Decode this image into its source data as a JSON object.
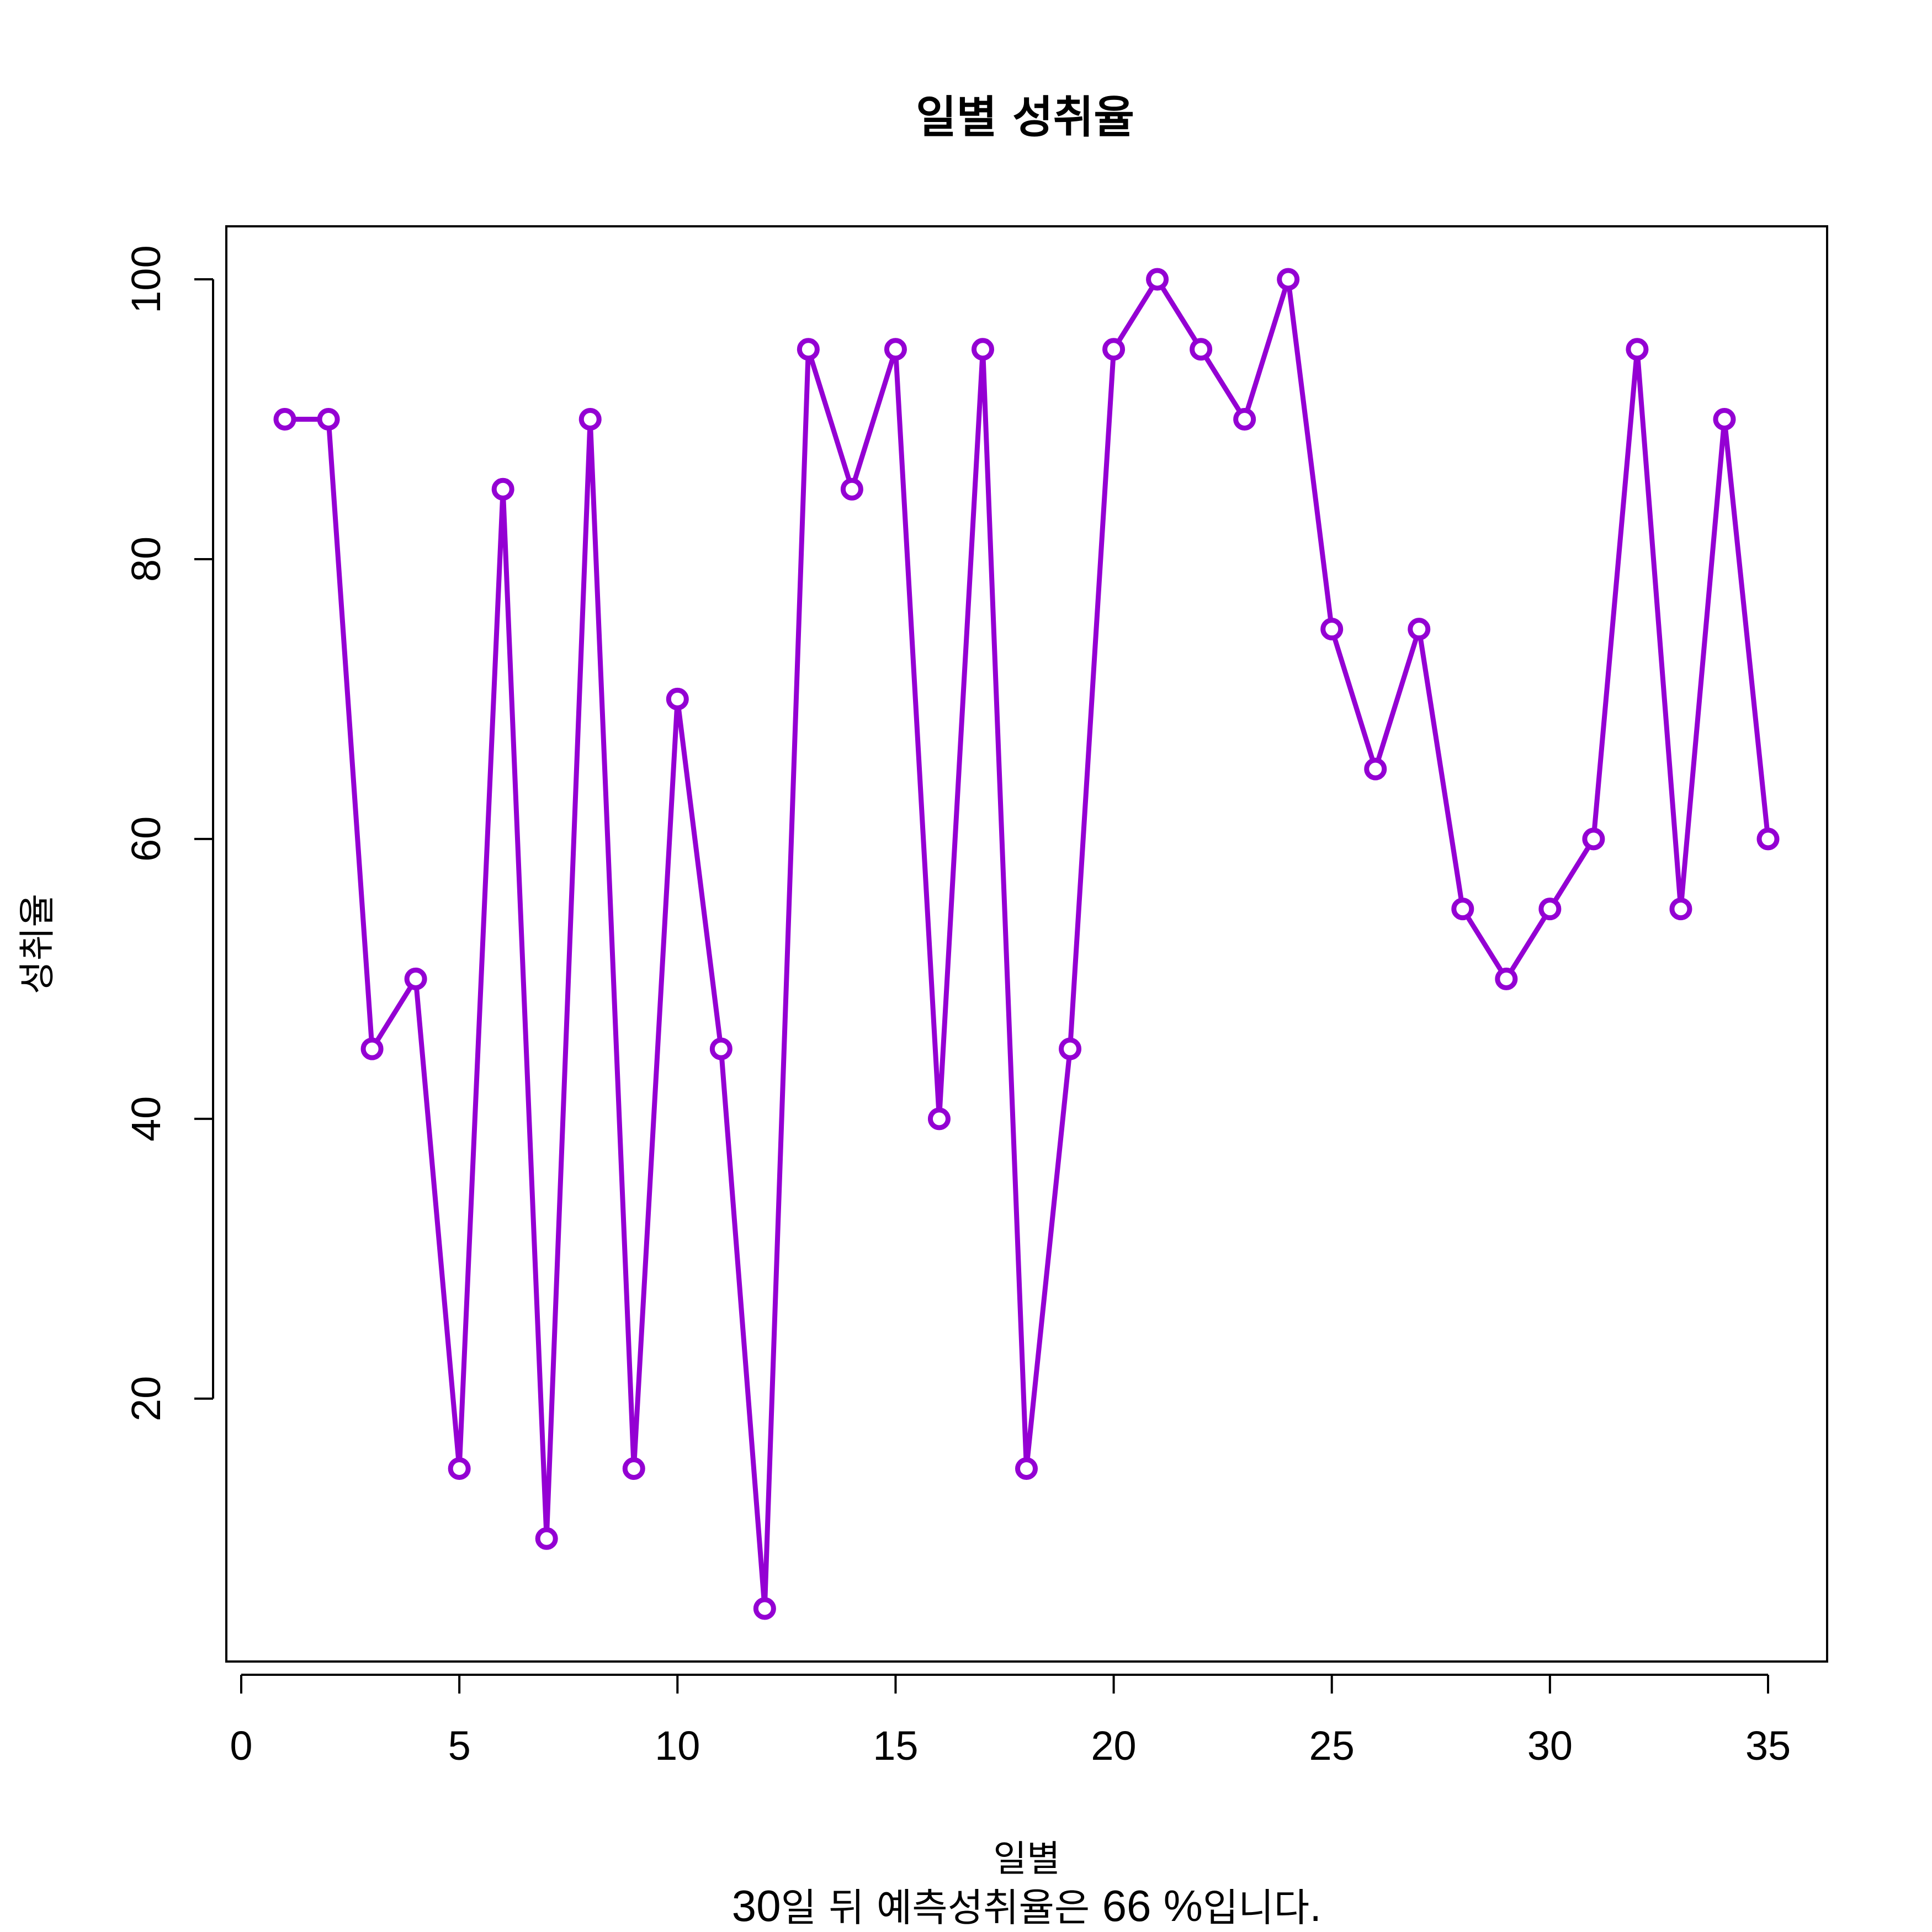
{
  "chart_data": {
    "type": "line",
    "title": "일별 성취율",
    "xlabel": "일별",
    "ylabel": "성취율",
    "x": [
      1,
      2,
      3,
      4,
      5,
      6,
      7,
      8,
      9,
      10,
      11,
      12,
      13,
      14,
      15,
      16,
      17,
      18,
      19,
      20,
      21,
      22,
      23,
      24,
      25,
      26,
      27,
      28,
      29,
      30,
      31,
      32,
      33,
      34,
      35
    ],
    "y": [
      90,
      90,
      45,
      50,
      15,
      85,
      10,
      90,
      15,
      70,
      45,
      5,
      95,
      85,
      95,
      40,
      95,
      15,
      45,
      95,
      100,
      95,
      90,
      100,
      75,
      65,
      75,
      55,
      50,
      55,
      60,
      95,
      55,
      90,
      60
    ],
    "xlim": [
      0,
      35
    ],
    "ylim": [
      5,
      100
    ],
    "xticks": [
      0,
      5,
      10,
      15,
      20,
      25,
      30,
      35
    ],
    "yticks": [
      20,
      40,
      60,
      80,
      100
    ],
    "grid": false,
    "marker": "open-circle",
    "color": "#9400D3"
  },
  "caption": {
    "days": "30",
    "part1": "일 뒤 예측성취율은 ",
    "value": "66",
    "part2": " %",
    "part3": "입니다."
  }
}
